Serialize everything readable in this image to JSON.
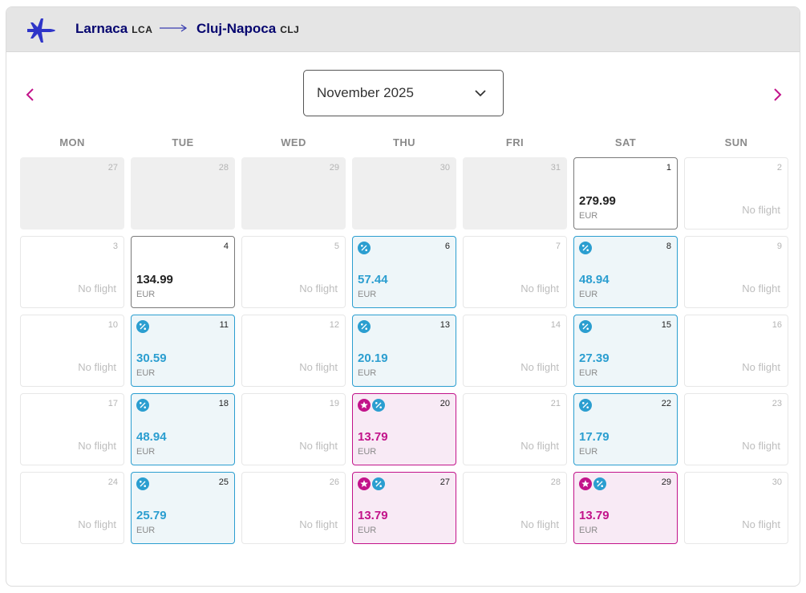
{
  "route": {
    "from_city": "Larnaca",
    "from_code": "LCA",
    "to_city": "Cluj-Napoca",
    "to_code": "CLJ"
  },
  "calendar": {
    "month_label": "November 2025",
    "weekdays": [
      "MON",
      "TUE",
      "WED",
      "THU",
      "FRI",
      "SAT",
      "SUN"
    ],
    "no_flight_label": "No flight",
    "currency": "EUR",
    "weeks": [
      [
        {
          "day": "27",
          "state": "outside"
        },
        {
          "day": "28",
          "state": "outside"
        },
        {
          "day": "29",
          "state": "outside"
        },
        {
          "day": "30",
          "state": "outside"
        },
        {
          "day": "31",
          "state": "outside"
        },
        {
          "day": "1",
          "state": "flight",
          "price": "279.99"
        },
        {
          "day": "2",
          "state": "none"
        }
      ],
      [
        {
          "day": "3",
          "state": "none"
        },
        {
          "day": "4",
          "state": "flight",
          "price": "134.99"
        },
        {
          "day": "5",
          "state": "none"
        },
        {
          "day": "6",
          "state": "deal",
          "price": "57.44"
        },
        {
          "day": "7",
          "state": "none"
        },
        {
          "day": "8",
          "state": "deal",
          "price": "48.94"
        },
        {
          "day": "9",
          "state": "none"
        }
      ],
      [
        {
          "day": "10",
          "state": "none"
        },
        {
          "day": "11",
          "state": "deal",
          "price": "30.59"
        },
        {
          "day": "12",
          "state": "none"
        },
        {
          "day": "13",
          "state": "deal",
          "price": "20.19"
        },
        {
          "day": "14",
          "state": "none"
        },
        {
          "day": "15",
          "state": "deal",
          "price": "27.39"
        },
        {
          "day": "16",
          "state": "none"
        }
      ],
      [
        {
          "day": "17",
          "state": "none"
        },
        {
          "day": "18",
          "state": "deal",
          "price": "48.94"
        },
        {
          "day": "19",
          "state": "none"
        },
        {
          "day": "20",
          "state": "promo",
          "price": "13.79"
        },
        {
          "day": "21",
          "state": "none"
        },
        {
          "day": "22",
          "state": "deal",
          "price": "17.79"
        },
        {
          "day": "23",
          "state": "none"
        }
      ],
      [
        {
          "day": "24",
          "state": "none"
        },
        {
          "day": "25",
          "state": "deal",
          "price": "25.79"
        },
        {
          "day": "26",
          "state": "none"
        },
        {
          "day": "27",
          "state": "promo",
          "price": "13.79"
        },
        {
          "day": "28",
          "state": "none"
        },
        {
          "day": "29",
          "state": "promo",
          "price": "13.79"
        },
        {
          "day": "30",
          "state": "none"
        }
      ]
    ]
  },
  "icons": {
    "plane": "plane-icon",
    "arrow": "right-arrow-icon",
    "prev": "chevron-left-icon",
    "next": "chevron-right-icon",
    "dropdown": "chevron-down-icon",
    "discount": "percent-badge-icon",
    "promo": "star-badge-icon"
  },
  "colors": {
    "route_text": "#06066f",
    "accent_magenta": "#c2138a",
    "deal_blue": "#2b9ed0",
    "deal_bg": "#eef6f9",
    "promo_bg": "#f8eaf5"
  }
}
